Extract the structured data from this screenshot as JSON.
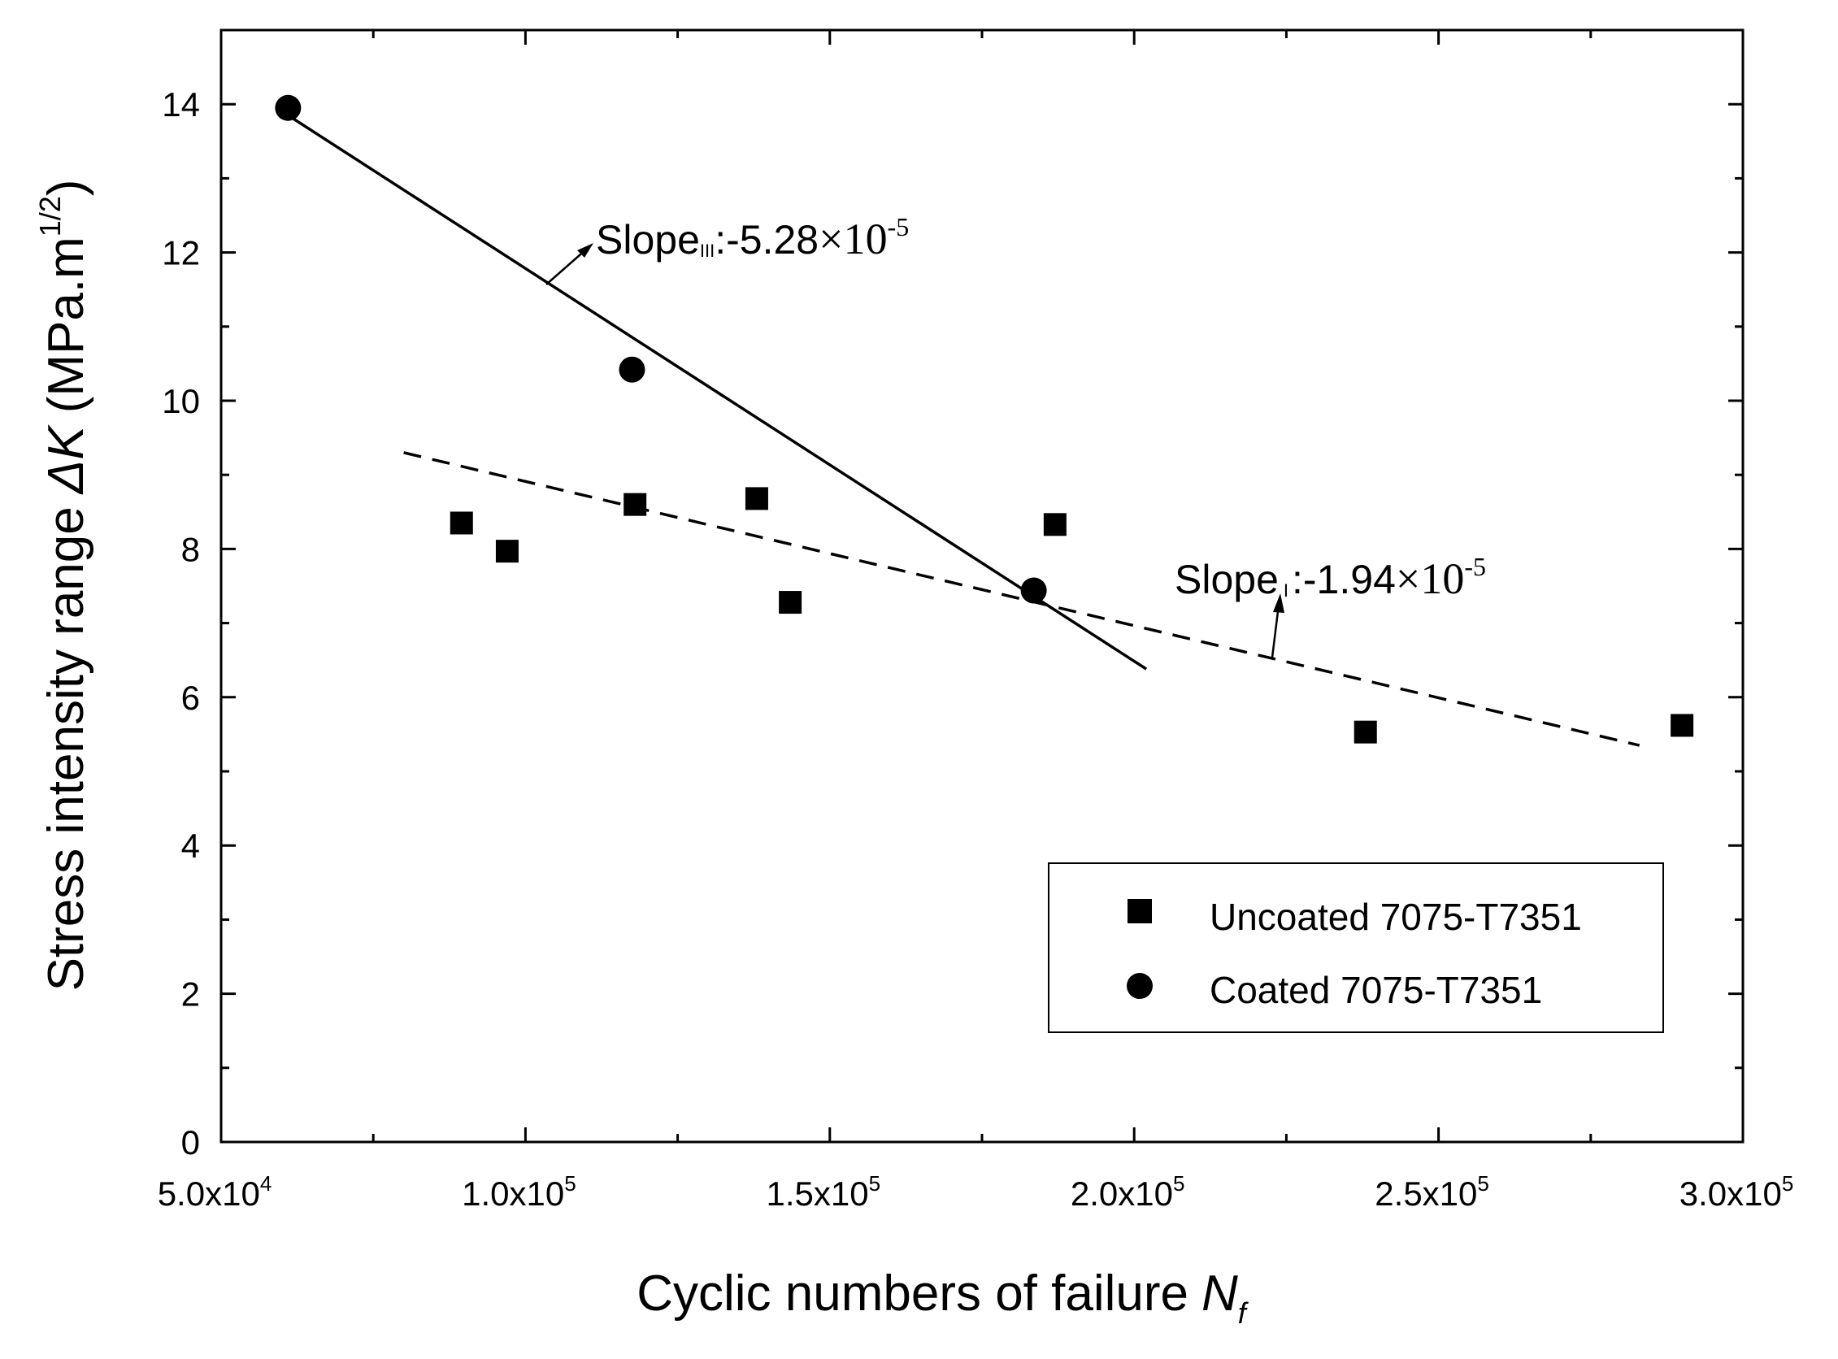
{
  "chart_data": {
    "type": "scatter",
    "xlabel": "Cyclic numbers of failure",
    "xlabel_symbol": "N",
    "xlabel_subscript": "f",
    "ylabel": "Stress intensity range",
    "ylabel_symbol": "ΔK",
    "ylabel_unit": "(MPa.m",
    "ylabel_unit_sup": "1/2",
    "ylabel_unit_close": ")",
    "xlim": [
      50000,
      300000
    ],
    "ylim": [
      0,
      15
    ],
    "x_ticks": [
      {
        "value": 50000,
        "mantissa": "5.0x10",
        "exp": "4"
      },
      {
        "value": 100000,
        "mantissa": "1.0x10",
        "exp": "5"
      },
      {
        "value": 150000,
        "mantissa": "1.5x10",
        "exp": "5"
      },
      {
        "value": 200000,
        "mantissa": "2.0x10",
        "exp": "5"
      },
      {
        "value": 250000,
        "mantissa": "2.5x10",
        "exp": "5"
      },
      {
        "value": 300000,
        "mantissa": "3.0x10",
        "exp": "5"
      }
    ],
    "y_ticks": [
      {
        "value": 0,
        "label": "0"
      },
      {
        "value": 2,
        "label": "2"
      },
      {
        "value": 4,
        "label": "4"
      },
      {
        "value": 6,
        "label": "6"
      },
      {
        "value": 8,
        "label": "8"
      },
      {
        "value": 10,
        "label": "10"
      },
      {
        "value": 12,
        "label": "12"
      },
      {
        "value": 14,
        "label": "14"
      }
    ],
    "series": [
      {
        "name": "Uncoated 7075-T7351",
        "marker": "square",
        "points": [
          {
            "x": 89500,
            "y": 8.35
          },
          {
            "x": 97000,
            "y": 7.97
          },
          {
            "x": 118000,
            "y": 8.6
          },
          {
            "x": 138000,
            "y": 8.68
          },
          {
            "x": 143500,
            "y": 7.28
          },
          {
            "x": 187000,
            "y": 8.33
          },
          {
            "x": 238000,
            "y": 5.53
          },
          {
            "x": 290000,
            "y": 5.62
          }
        ]
      },
      {
        "name": "Coated 7075-T7351",
        "marker": "circle",
        "points": [
          {
            "x": 61000,
            "y": 13.95
          },
          {
            "x": 117500,
            "y": 10.42
          },
          {
            "x": 183500,
            "y": 7.44
          }
        ]
      }
    ],
    "fit_lines": [
      {
        "style": "solid",
        "from": {
          "x": 61000,
          "y": 13.85
        },
        "to": {
          "x": 202000,
          "y": 6.38
        }
      },
      {
        "style": "dashed",
        "from": {
          "x": 80000,
          "y": 9.3
        },
        "to": {
          "x": 283000,
          "y": 5.35
        }
      }
    ],
    "annotations": [
      {
        "id": "slope-iii",
        "prefix": "Slope",
        "subscript": "III",
        "value": ":-5.28",
        "times": "×",
        "base": "10",
        "exp": "-5"
      },
      {
        "id": "slope-i",
        "prefix": "Slope",
        "subscript": "I",
        "value": ":-1.94",
        "times": "×",
        "base": "10",
        "exp": "-5"
      }
    ],
    "legend_position": "bottom-right"
  }
}
